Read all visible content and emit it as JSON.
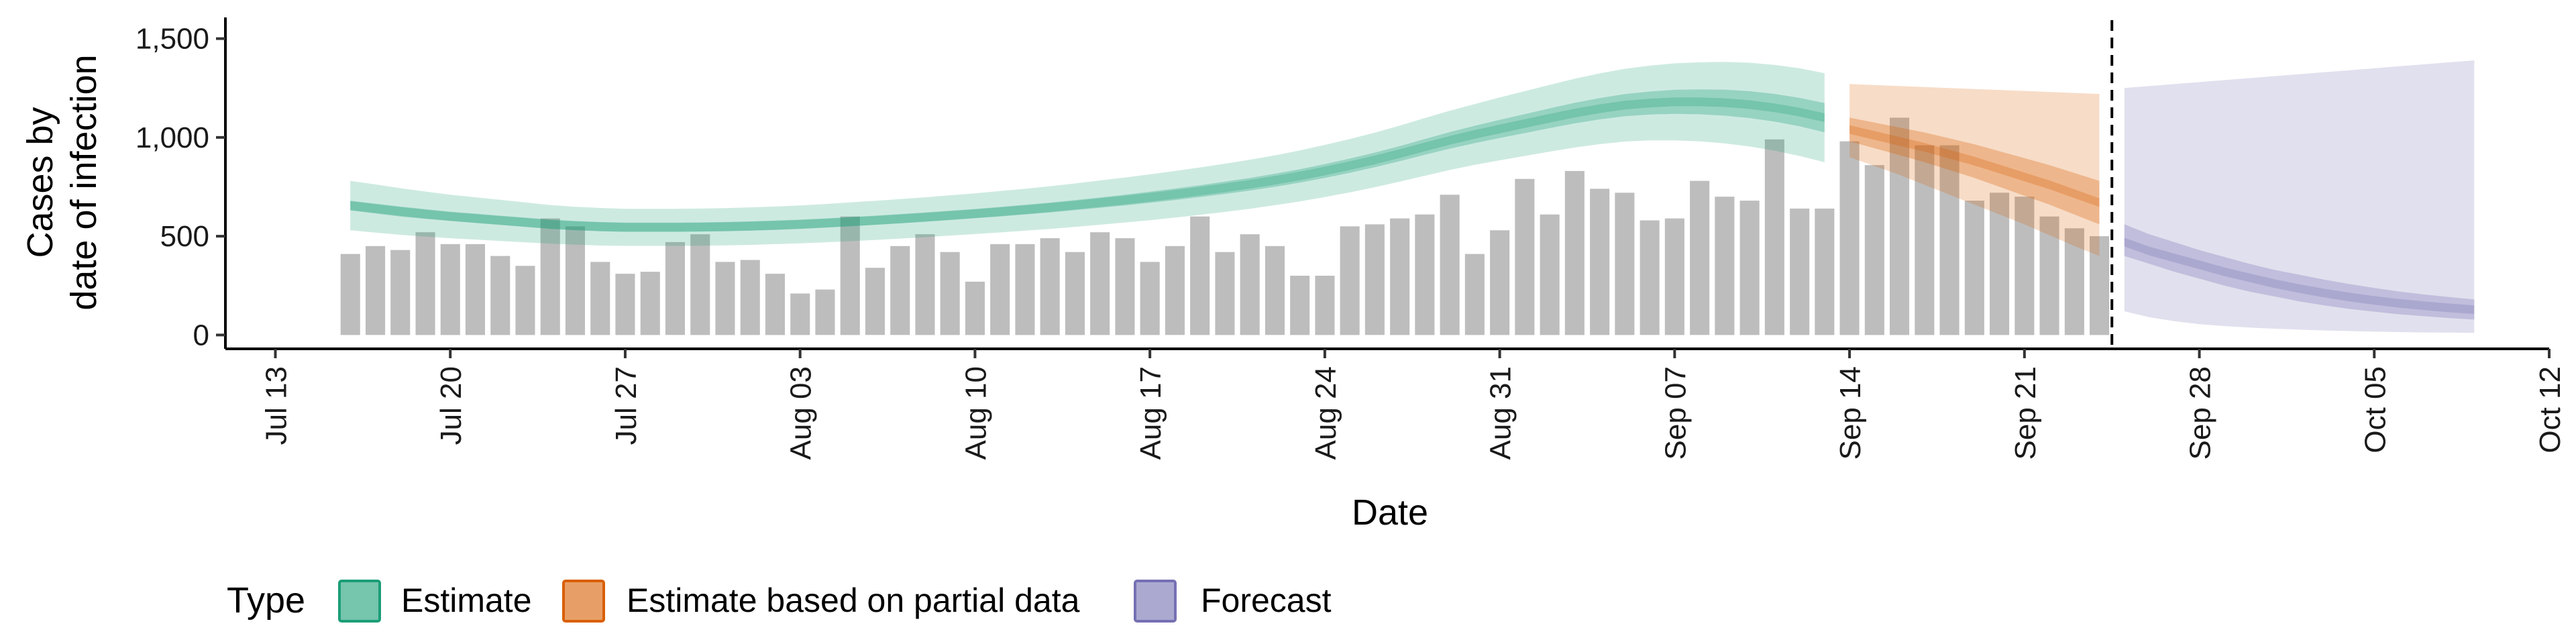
{
  "chart_data": {
    "type": "bar",
    "xlabel": "Date",
    "ylabel": [
      "Cases by",
      "date of infection"
    ],
    "ylim": [
      -70,
      1580
    ],
    "xlim": [
      "2020-07-11",
      "2020-10-12"
    ],
    "yticks": [
      0,
      500,
      1000,
      1500
    ],
    "ytick_labels": [
      "0",
      "500",
      "1,000",
      "1,500"
    ],
    "xticks": [
      "2020-07-13",
      "2020-07-20",
      "2020-07-27",
      "2020-08-03",
      "2020-08-10",
      "2020-08-17",
      "2020-08-24",
      "2020-08-31",
      "2020-09-07",
      "2020-09-14",
      "2020-09-21",
      "2020-09-28",
      "2020-10-05",
      "2020-10-12"
    ],
    "xtick_labels": [
      "Jul 13",
      "Jul 20",
      "Jul 27",
      "Aug 03",
      "Aug 10",
      "Aug 17",
      "Aug 24",
      "Aug 31",
      "Sep 07",
      "Sep 14",
      "Sep 21",
      "Sep 28",
      "Oct 05",
      "Oct 12"
    ],
    "grid": false,
    "cutoff_date": "2020-09-24",
    "bar_color": "#bdbdbd",
    "bars": {
      "start": "2020-07-16",
      "values": [
        410,
        450,
        430,
        520,
        460,
        460,
        400,
        350,
        590,
        550,
        370,
        310,
        320,
        470,
        510,
        370,
        380,
        310,
        210,
        230,
        600,
        340,
        450,
        510,
        420,
        270,
        460,
        460,
        490,
        420,
        520,
        490,
        370,
        450,
        600,
        420,
        510,
        450,
        300,
        300,
        550,
        560,
        590,
        610,
        710,
        410,
        530,
        790,
        610,
        830,
        740,
        720,
        580,
        590,
        780,
        700,
        680,
        990,
        640,
        640,
        980,
        860,
        1100,
        960,
        960,
        680,
        720,
        700,
        600,
        540,
        500
      ]
    },
    "series": [
      {
        "name": "Estimate",
        "color": "#1b9e77",
        "start": "2020-07-16",
        "median": [
          655,
          640,
          625,
          612,
          600,
          590,
          580,
          570,
          560,
          553,
          548,
          545,
          545,
          545,
          546,
          548,
          551,
          555,
          560,
          566,
          573,
          580,
          588,
          596,
          605,
          614,
          624,
          634,
          645,
          657,
          670,
          683,
          697,
          712,
          728,
          745,
          763,
          783,
          805,
          830,
          857,
          886,
          918,
          952,
          985,
          1015,
          1043,
          1070,
          1097,
          1123,
          1145,
          1163,
          1174,
          1180,
          1180,
          1176,
          1166,
          1150,
          1128,
          1100
        ],
        "inner": [
          [
            630,
            680
          ],
          [
            615,
            665
          ],
          [
            600,
            650
          ],
          [
            588,
            637
          ],
          [
            577,
            624
          ],
          [
            567,
            614
          ],
          [
            557,
            604
          ],
          [
            547,
            594
          ],
          [
            537,
            584
          ],
          [
            530,
            577
          ],
          [
            525,
            572
          ],
          [
            522,
            569
          ],
          [
            522,
            569
          ],
          [
            522,
            569
          ],
          [
            523,
            570
          ],
          [
            525,
            572
          ],
          [
            528,
            575
          ],
          [
            532,
            579
          ],
          [
            537,
            584
          ],
          [
            543,
            590
          ],
          [
            550,
            597
          ],
          [
            557,
            604
          ],
          [
            565,
            612
          ],
          [
            573,
            620
          ],
          [
            582,
            629
          ],
          [
            591,
            638
          ],
          [
            600,
            648
          ],
          [
            610,
            659
          ],
          [
            620,
            670
          ],
          [
            632,
            683
          ],
          [
            644,
            696
          ],
          [
            656,
            710
          ],
          [
            669,
            725
          ],
          [
            683,
            741
          ],
          [
            698,
            758
          ],
          [
            714,
            776
          ],
          [
            731,
            795
          ],
          [
            750,
            816
          ],
          [
            771,
            839
          ],
          [
            795,
            865
          ],
          [
            821,
            893
          ],
          [
            849,
            923
          ],
          [
            880,
            956
          ],
          [
            912,
            992
          ],
          [
            943,
            1027
          ],
          [
            971,
            1059
          ],
          [
            997,
            1089
          ],
          [
            1022,
            1118
          ],
          [
            1047,
            1147
          ],
          [
            1071,
            1175
          ],
          [
            1091,
            1199
          ],
          [
            1107,
            1219
          ],
          [
            1116,
            1232
          ],
          [
            1119,
            1241
          ],
          [
            1117,
            1243
          ],
          [
            1110,
            1242
          ],
          [
            1098,
            1234
          ],
          [
            1080,
            1220
          ],
          [
            1056,
            1200
          ],
          [
            1026,
            1174
          ]
        ],
        "outer": [
          [
            530,
            780
          ],
          [
            518,
            762
          ],
          [
            507,
            743
          ],
          [
            498,
            726
          ],
          [
            490,
            710
          ],
          [
            483,
            697
          ],
          [
            476,
            684
          ],
          [
            469,
            671
          ],
          [
            462,
            658
          ],
          [
            457,
            649
          ],
          [
            453,
            643
          ],
          [
            451,
            639
          ],
          [
            451,
            639
          ],
          [
            451,
            639
          ],
          [
            452,
            640
          ],
          [
            454,
            642
          ],
          [
            456,
            646
          ],
          [
            460,
            650
          ],
          [
            464,
            656
          ],
          [
            469,
            663
          ],
          [
            475,
            671
          ],
          [
            481,
            679
          ],
          [
            488,
            688
          ],
          [
            495,
            697
          ],
          [
            503,
            707
          ],
          [
            511,
            717
          ],
          [
            519,
            729
          ],
          [
            528,
            740
          ],
          [
            537,
            753
          ],
          [
            547,
            767
          ],
          [
            558,
            782
          ],
          [
            569,
            797
          ],
          [
            581,
            813
          ],
          [
            594,
            830
          ],
          [
            608,
            848
          ],
          [
            623,
            867
          ],
          [
            639,
            887
          ],
          [
            657,
            909
          ],
          [
            676,
            934
          ],
          [
            698,
            962
          ],
          [
            722,
            992
          ],
          [
            748,
            1024
          ],
          [
            776,
            1060
          ],
          [
            806,
            1098
          ],
          [
            835,
            1135
          ],
          [
            861,
            1169
          ],
          [
            884,
            1202
          ],
          [
            906,
            1234
          ],
          [
            928,
            1266
          ],
          [
            949,
            1297
          ],
          [
            966,
            1324
          ],
          [
            979,
            1347
          ],
          [
            985,
            1363
          ],
          [
            985,
            1375
          ],
          [
            980,
            1380
          ],
          [
            970,
            1382
          ],
          [
            954,
            1378
          ],
          [
            933,
            1367
          ],
          [
            906,
            1350
          ],
          [
            875,
            1325
          ]
        ]
      },
      {
        "name": "Estimate based on partial data",
        "color": "#d95f02",
        "start": "2020-09-14",
        "median": [
          1040,
          1010,
          980,
          950,
          915,
          880,
          840,
          800,
          760,
          715,
          670
        ],
        "inner": [
          [
            980,
            1100
          ],
          [
            945,
            1075
          ],
          [
            910,
            1050
          ],
          [
            875,
            1025
          ],
          [
            835,
            995
          ],
          [
            795,
            965
          ],
          [
            750,
            930
          ],
          [
            705,
            895
          ],
          [
            660,
            860
          ],
          [
            610,
            820
          ],
          [
            560,
            780
          ]
        ],
        "outer": [
          [
            900,
            1270
          ],
          [
            855,
            1265
          ],
          [
            810,
            1260
          ],
          [
            760,
            1255
          ],
          [
            710,
            1250
          ],
          [
            660,
            1245
          ],
          [
            610,
            1240
          ],
          [
            560,
            1235
          ],
          [
            505,
            1230
          ],
          [
            450,
            1225
          ],
          [
            400,
            1220
          ]
        ]
      },
      {
        "name": "Forecast",
        "color": "#7570b3",
        "start": "2020-09-25",
        "median": [
          470,
          425,
          390,
          355,
          320,
          290,
          260,
          235,
          212,
          192,
          175,
          160,
          148,
          137,
          128
        ],
        "inner": [
          [
            400,
            560
          ],
          [
            360,
            510
          ],
          [
            320,
            470
          ],
          [
            285,
            430
          ],
          [
            250,
            395
          ],
          [
            220,
            360
          ],
          [
            195,
            330
          ],
          [
            170,
            305
          ],
          [
            150,
            280
          ],
          [
            132,
            258
          ],
          [
            118,
            238
          ],
          [
            105,
            220
          ],
          [
            95,
            205
          ],
          [
            86,
            192
          ],
          [
            78,
            180
          ]
        ],
        "outer": [
          [
            120,
            1250
          ],
          [
            90,
            1260
          ],
          [
            70,
            1270
          ],
          [
            55,
            1280
          ],
          [
            45,
            1290
          ],
          [
            38,
            1300
          ],
          [
            32,
            1310
          ],
          [
            27,
            1320
          ],
          [
            23,
            1330
          ],
          [
            20,
            1340
          ],
          [
            17,
            1350
          ],
          [
            15,
            1360
          ],
          [
            13,
            1370
          ],
          [
            12,
            1380
          ],
          [
            11,
            1390
          ]
        ]
      }
    ],
    "legend": {
      "title": "Type",
      "position": "bottom",
      "items": [
        {
          "label": "Estimate",
          "color": "#1b9e77"
        },
        {
          "label": "Estimate based on partial data",
          "color": "#d95f02"
        },
        {
          "label": "Forecast",
          "color": "#7570b3"
        }
      ]
    }
  }
}
